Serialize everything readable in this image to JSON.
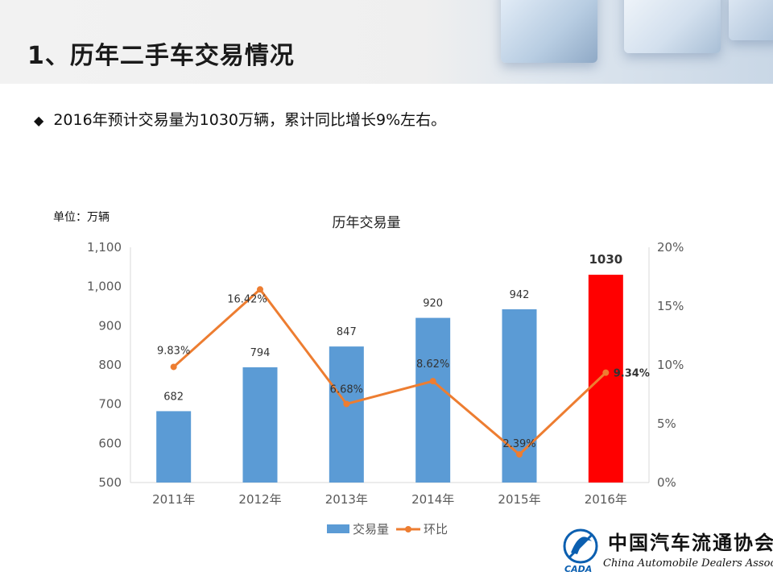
{
  "header": {
    "title": "1、历年二手车交易情况"
  },
  "bullet": {
    "marker": "◆",
    "text": "2016年预计交易量为1030万辆，累计同比增长9%左右。"
  },
  "chart_data": {
    "type": "bar+line",
    "title": "历年交易量",
    "unit_label": "单位：万辆",
    "categories": [
      "2011年",
      "2012年",
      "2013年",
      "2014年",
      "2015年",
      "2016年"
    ],
    "series": [
      {
        "name": "交易量",
        "type": "bar",
        "axis": "left",
        "values": [
          682,
          794,
          847,
          920,
          942,
          1030
        ],
        "labels": [
          "682",
          "794",
          "847",
          "920",
          "942",
          "1030"
        ],
        "color": "#5b9bd5",
        "highlight_index": 5,
        "highlight_color": "#ff0000"
      },
      {
        "name": "环比",
        "type": "line",
        "axis": "right",
        "values": [
          9.83,
          16.42,
          6.68,
          8.62,
          2.39,
          9.34
        ],
        "labels": [
          "9.83%",
          "16.42%",
          "6.68%",
          "8.62%",
          "2.39%",
          "9.34%"
        ],
        "color": "#ed7d31"
      }
    ],
    "y_left": {
      "min": 500,
      "max": 1100,
      "ticks": [
        "500",
        "600",
        "700",
        "800",
        "900",
        "1,000",
        "1,100"
      ]
    },
    "y_right": {
      "min": 0,
      "max": 20,
      "ticks": [
        "0%",
        "5%",
        "10%",
        "15%",
        "20%"
      ]
    },
    "grid": false,
    "legend": "bottom"
  },
  "logo": {
    "cn": "中国汽车流通协会",
    "en": "China Automobile Dealers Association",
    "mark": "CADA"
  }
}
